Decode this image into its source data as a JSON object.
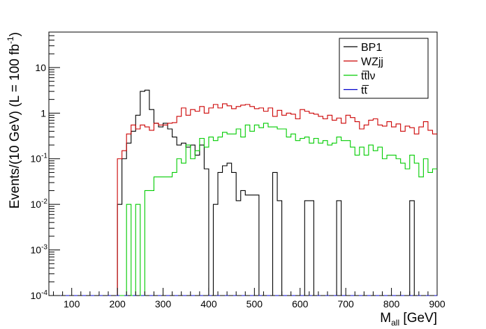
{
  "chart_data": {
    "type": "line",
    "subtype": "step-histogram",
    "xlabel": "M_all [GeV]",
    "xlabel_main": "M",
    "xlabel_sub": "all",
    "xlabel_unit": " [GeV]",
    "ylabel": "Events/(10 GeV) (L = 100 fb^-1)",
    "ylabel_main": "Events/(10 GeV) (L = 100 fb",
    "ylabel_sup": "-1",
    "ylabel_end": ")",
    "xlim": [
      50,
      900
    ],
    "ylim": [
      0.0001,
      60
    ],
    "yscale": "log",
    "bin_width": 10,
    "x_ticks": [
      100,
      200,
      300,
      400,
      500,
      600,
      700,
      800,
      900
    ],
    "y_ticks": [
      {
        "value": 0.0001,
        "base": "10",
        "exp": "-4"
      },
      {
        "value": 0.001,
        "base": "10",
        "exp": "-3"
      },
      {
        "value": 0.01,
        "base": "10",
        "exp": "-2"
      },
      {
        "value": 0.1,
        "base": "10",
        "exp": "-1"
      },
      {
        "value": 1,
        "base": "1",
        "exp": ""
      },
      {
        "value": 10,
        "base": "10",
        "exp": ""
      }
    ],
    "grid": false,
    "legend_position": "top-right",
    "series": [
      {
        "name": "BP1",
        "color": "#000000",
        "edges": [
          200,
          210,
          220,
          230,
          240,
          250,
          260,
          270,
          280,
          290,
          300,
          310,
          320,
          330,
          340,
          350,
          360,
          370,
          380,
          390,
          400,
          410,
          420,
          430,
          440,
          450,
          460,
          470,
          480,
          490,
          500,
          510,
          520,
          530,
          540,
          550,
          560,
          570,
          580,
          590,
          600,
          610,
          620,
          630,
          640,
          650,
          660,
          670,
          680,
          690,
          840,
          850,
          860
        ],
        "values": [
          0.01,
          0.1,
          0.22,
          0.4,
          0.9,
          3.0,
          3.2,
          1.2,
          0.6,
          0.5,
          0.6,
          0.45,
          0.3,
          0.2,
          0.22,
          0.18,
          0.2,
          0.12,
          0.2,
          0.06,
          0.0001,
          0.01,
          0.05,
          0.07,
          0.08,
          0.05,
          0.012,
          0.02,
          0.016,
          0.016,
          0.016,
          0.0001,
          0.0001,
          0.0001,
          0.05,
          0.012,
          0.0001,
          0.0001,
          0.0001,
          0.0001,
          0.0001,
          0.012,
          0.012,
          0.0001,
          0.0001,
          0.0001,
          0.0001,
          0.0001,
          0.012,
          0.0001,
          0.012,
          0.0001
        ]
      },
      {
        "name": "WZjj",
        "color": "#cc0000",
        "edges": [
          200,
          210,
          220,
          230,
          240,
          250,
          260,
          270,
          280,
          290,
          300,
          310,
          320,
          330,
          340,
          350,
          360,
          370,
          380,
          390,
          400,
          410,
          420,
          430,
          440,
          450,
          460,
          470,
          480,
          490,
          500,
          510,
          520,
          530,
          540,
          550,
          560,
          570,
          580,
          590,
          600,
          610,
          620,
          630,
          640,
          650,
          660,
          670,
          680,
          690,
          700,
          710,
          720,
          730,
          740,
          750,
          760,
          770,
          780,
          790,
          800,
          810,
          820,
          830,
          840,
          850,
          860,
          870,
          880,
          890,
          900
        ],
        "values": [
          0.1,
          0.15,
          0.35,
          0.55,
          0.45,
          0.55,
          0.5,
          0.42,
          0.6,
          0.55,
          0.55,
          0.6,
          0.62,
          0.85,
          1.3,
          0.9,
          1.2,
          1.1,
          1.4,
          1.0,
          1.3,
          1.55,
          1.3,
          1.6,
          1.45,
          1.25,
          1.4,
          1.5,
          1.55,
          1.4,
          1.25,
          1.3,
          1.1,
          1.3,
          0.85,
          1.15,
          0.9,
          1.0,
          0.95,
          0.75,
          1.2,
          1.1,
          1.0,
          0.95,
          0.85,
          0.75,
          0.9,
          0.7,
          0.78,
          0.6,
          0.9,
          0.8,
          0.65,
          0.45,
          0.55,
          0.7,
          0.75,
          0.55,
          0.52,
          0.65,
          0.5,
          0.58,
          0.4,
          0.52,
          0.48,
          0.35,
          0.5,
          0.65,
          0.42,
          0.35
        ]
      },
      {
        "name": "tt̅lν",
        "color": "#00cc00",
        "edges": [
          200,
          210,
          220,
          230,
          240,
          250,
          260,
          270,
          280,
          290,
          300,
          310,
          320,
          330,
          340,
          350,
          360,
          370,
          380,
          390,
          400,
          410,
          420,
          430,
          440,
          450,
          460,
          470,
          480,
          490,
          500,
          510,
          520,
          530,
          540,
          550,
          560,
          570,
          580,
          590,
          600,
          610,
          620,
          630,
          640,
          650,
          660,
          670,
          680,
          690,
          700,
          710,
          720,
          730,
          740,
          750,
          760,
          770,
          780,
          790,
          800,
          810,
          820,
          830,
          840,
          850,
          860,
          870,
          880,
          890,
          900
        ],
        "values": [
          0.0001,
          0.0001,
          0.01,
          0.0001,
          0.01,
          0.0001,
          0.02,
          0.02,
          0.04,
          0.04,
          0.04,
          0.04,
          0.05,
          0.1,
          0.08,
          0.2,
          0.1,
          0.15,
          0.28,
          0.18,
          0.3,
          0.25,
          0.3,
          0.38,
          0.35,
          0.35,
          0.45,
          0.3,
          0.55,
          0.4,
          0.55,
          0.48,
          0.6,
          0.5,
          0.5,
          0.45,
          0.45,
          0.3,
          0.35,
          0.25,
          0.28,
          0.3,
          0.22,
          0.28,
          0.22,
          0.25,
          0.2,
          0.22,
          0.3,
          0.25,
          0.25,
          0.18,
          0.12,
          0.18,
          0.12,
          0.2,
          0.15,
          0.18,
          0.1,
          0.12,
          0.12,
          0.1,
          0.08,
          0.06,
          0.12,
          0.08,
          0.04,
          0.1,
          0.05,
          0.06
        ]
      },
      {
        "name": "tt̅",
        "color": "#0000cc",
        "edges": [
          50,
          900
        ],
        "values": [
          0.0001
        ]
      }
    ]
  }
}
